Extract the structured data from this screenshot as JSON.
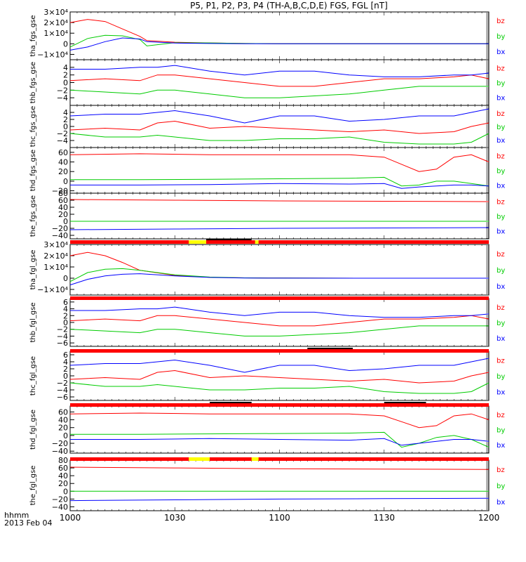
{
  "title": "P5, P1, P2, P3, P4 (TH-A,B,C,D,E) FGS, FGL [nT]",
  "footer": {
    "label": "hhmm",
    "date": "2013 Feb 04"
  },
  "colors": {
    "bx": "#0000ff",
    "by": "#00cc00",
    "bz": "#ff0000",
    "bar_red": "#ff0000",
    "bar_yellow": "#ffff00",
    "bar_black": "#000000"
  },
  "chart_data": [
    {
      "type": "line",
      "ylabel": "tha_fgs_gse",
      "x": [
        "1000",
        "1005",
        "1010",
        "1015",
        "1020",
        "1022",
        "1030",
        "1040",
        "1050",
        "1100",
        "1130",
        "1200"
      ],
      "ylim": [
        -15000,
        30000
      ],
      "yticks": [
        {
          "v": 30000,
          "t": "3×10⁴"
        },
        {
          "v": 20000,
          "t": "2×10⁴"
        },
        {
          "v": 10000,
          "t": "1×10⁴"
        },
        {
          "v": 0,
          "t": "0"
        },
        {
          "v": -10000,
          "t": "−1×10⁴"
        }
      ],
      "series": [
        {
          "name": "bz",
          "values": [
            20000,
            23000,
            21000,
            14000,
            7000,
            3000,
            1500,
            800,
            300,
            100,
            0,
            0
          ]
        },
        {
          "name": "by",
          "values": [
            -3000,
            5000,
            8000,
            7500,
            4000,
            -2000,
            1000,
            800,
            300,
            100,
            0,
            0
          ]
        },
        {
          "name": "bx",
          "values": [
            -6000,
            -3000,
            2000,
            5500,
            4500,
            2000,
            700,
            300,
            100,
            0,
            0,
            0
          ]
        }
      ]
    },
    {
      "type": "line",
      "ylabel": "thb_fgs_gse",
      "x": [
        "1000",
        "1010",
        "1020",
        "1025",
        "1030",
        "1040",
        "1050",
        "1100",
        "1110",
        "1120",
        "1130",
        "1140",
        "1150",
        "1155",
        "1200"
      ],
      "ylim": [
        -6,
        6
      ],
      "yticks": [
        {
          "v": 4,
          "t": "4"
        },
        {
          "v": 2,
          "t": "2"
        },
        {
          "v": 0,
          "t": "0"
        },
        {
          "v": -2,
          "t": "−2"
        },
        {
          "v": -4,
          "t": "−4"
        }
      ],
      "series": [
        {
          "name": "bz",
          "values": [
            0.5,
            1,
            0.5,
            2,
            2,
            1,
            0,
            -1,
            -1,
            0,
            1,
            1,
            1.5,
            2,
            1
          ]
        },
        {
          "name": "by",
          "values": [
            -2,
            -2.5,
            -3,
            -2,
            -2,
            -3,
            -4,
            -4,
            -3.5,
            -3,
            -2,
            -1,
            -1,
            -1,
            -1
          ]
        },
        {
          "name": "bx",
          "values": [
            3.5,
            3.5,
            4,
            4,
            4.5,
            3,
            2,
            3,
            3,
            2,
            1.5,
            1.5,
            2,
            2,
            2.5
          ]
        }
      ]
    },
    {
      "type": "line",
      "ylabel": "thc_fgs_gse",
      "x": [
        "1000",
        "1010",
        "1020",
        "1025",
        "1030",
        "1040",
        "1050",
        "1100",
        "1110",
        "1120",
        "1130",
        "1140",
        "1150",
        "1155",
        "1200"
      ],
      "ylim": [
        -6,
        6
      ],
      "yticks": [
        {
          "v": 4,
          "t": "4"
        },
        {
          "v": 2,
          "t": "2"
        },
        {
          "v": 0,
          "t": "0"
        },
        {
          "v": -2,
          "t": "−2"
        },
        {
          "v": -4,
          "t": "−4"
        }
      ],
      "series": [
        {
          "name": "bz",
          "values": [
            -1,
            -0.5,
            -1,
            1,
            1.5,
            -0.5,
            0,
            -0.5,
            -1,
            -1.5,
            -1,
            -2,
            -1.5,
            0,
            1
          ]
        },
        {
          "name": "by",
          "values": [
            -2,
            -3,
            -3,
            -2.5,
            -3,
            -4,
            -4,
            -3.5,
            -3.5,
            -3,
            -4.5,
            -5,
            -5,
            -4.5,
            -2
          ]
        },
        {
          "name": "bx",
          "values": [
            3,
            3.5,
            3.5,
            4,
            4.5,
            3,
            1,
            3,
            3,
            1.5,
            2,
            3,
            3,
            4,
            5
          ]
        }
      ]
    },
    {
      "type": "line",
      "ylabel": "thd_fgs_gse",
      "x": [
        "1000",
        "1020",
        "1040",
        "1100",
        "1120",
        "1130",
        "1135",
        "1140",
        "1145",
        "1150",
        "1155",
        "1200"
      ],
      "ylim": [
        -25,
        70
      ],
      "yticks": [
        {
          "v": 60,
          "t": "60"
        },
        {
          "v": 40,
          "t": "40"
        },
        {
          "v": 20,
          "t": "20"
        },
        {
          "v": 0,
          "t": "0"
        },
        {
          "v": -20,
          "t": "−20"
        }
      ],
      "series": [
        {
          "name": "bz",
          "values": [
            55,
            57,
            55,
            55,
            55,
            50,
            35,
            20,
            25,
            50,
            55,
            40
          ]
        },
        {
          "name": "by",
          "values": [
            3,
            3,
            4,
            5,
            6,
            8,
            -10,
            -8,
            0,
            0,
            -5,
            -10
          ]
        },
        {
          "name": "bx",
          "values": [
            -8,
            -8,
            -7,
            -5,
            -6,
            -5,
            -15,
            -12,
            -10,
            -8,
            -8,
            -10
          ]
        }
      ]
    },
    {
      "type": "line",
      "ylabel": "the_fgs_gse",
      "x": [
        "1000",
        "1030",
        "1100",
        "1130",
        "1200"
      ],
      "ylim": [
        -50,
        80
      ],
      "yticks": [
        {
          "v": 80,
          "t": "80"
        },
        {
          "v": 60,
          "t": "60"
        },
        {
          "v": 40,
          "t": "40"
        },
        {
          "v": 20,
          "t": "20"
        },
        {
          "v": 0,
          "t": "0"
        },
        {
          "v": -20,
          "t": "−20"
        },
        {
          "v": -40,
          "t": "−40"
        }
      ],
      "series": [
        {
          "name": "bz",
          "values": [
            62,
            60,
            58,
            57,
            56
          ]
        },
        {
          "name": "by",
          "values": [
            0,
            0,
            0,
            0,
            0
          ]
        },
        {
          "name": "bx",
          "values": [
            -24,
            -22,
            -20,
            -19,
            -18
          ]
        }
      ]
    },
    {
      "type": "line",
      "ylabel": "tha_fgl_gse",
      "x": [
        "1000",
        "1005",
        "1010",
        "1015",
        "1020",
        "1030",
        "1040",
        "1050",
        "1100",
        "1130",
        "1200"
      ],
      "ylim": [
        -15000,
        30000
      ],
      "yticks": [
        {
          "v": 30000,
          "t": "3×10⁴"
        },
        {
          "v": 20000,
          "t": "2×10⁴"
        },
        {
          "v": 10000,
          "t": "1×10⁴"
        },
        {
          "v": 0,
          "t": "0"
        },
        {
          "v": -10000,
          "t": "−1×10⁴"
        }
      ],
      "series": [
        {
          "name": "bz",
          "values": [
            20000,
            23000,
            20000,
            14000,
            7000,
            2500,
            800,
            300,
            100,
            0,
            0
          ]
        },
        {
          "name": "by",
          "values": [
            -3000,
            5000,
            8000,
            8500,
            7000,
            3000,
            1000,
            300,
            100,
            0,
            0
          ]
        },
        {
          "name": "bx",
          "values": [
            -6000,
            -1000,
            2000,
            3500,
            4000,
            2000,
            700,
            200,
            50,
            0,
            0
          ]
        }
      ]
    },
    {
      "type": "line",
      "ylabel": "thb_fgl_gse",
      "x": [
        "1000",
        "1010",
        "1020",
        "1025",
        "1030",
        "1040",
        "1050",
        "1100",
        "1110",
        "1120",
        "1130",
        "1140",
        "1150",
        "1155",
        "1200"
      ],
      "ylim": [
        -7,
        7
      ],
      "yticks": [
        {
          "v": 6,
          "t": "6"
        },
        {
          "v": 4,
          "t": "4"
        },
        {
          "v": 2,
          "t": "2"
        },
        {
          "v": 0,
          "t": "0"
        },
        {
          "v": -2,
          "t": "−2"
        },
        {
          "v": -4,
          "t": "−4"
        },
        {
          "v": -6,
          "t": "−6"
        }
      ],
      "series": [
        {
          "name": "bz",
          "values": [
            0.5,
            1,
            0.5,
            2,
            2,
            1,
            0,
            -1,
            -1,
            0,
            1,
            1,
            1.5,
            2,
            1
          ]
        },
        {
          "name": "by",
          "values": [
            -2,
            -2.5,
            -3,
            -2,
            -2,
            -3,
            -4,
            -4,
            -3.5,
            -3,
            -2,
            -1,
            -1,
            -1,
            -1
          ]
        },
        {
          "name": "bx",
          "values": [
            3.5,
            3.5,
            4,
            4,
            4.5,
            3,
            2,
            3,
            3,
            2,
            1.5,
            1.5,
            2,
            2,
            2.5
          ]
        }
      ]
    },
    {
      "type": "line",
      "ylabel": "thc_fgl_gse",
      "x": [
        "1000",
        "1010",
        "1020",
        "1025",
        "1030",
        "1040",
        "1050",
        "1100",
        "1110",
        "1120",
        "1130",
        "1140",
        "1150",
        "1155",
        "1200"
      ],
      "ylim": [
        -7,
        7
      ],
      "yticks": [
        {
          "v": 6,
          "t": "6"
        },
        {
          "v": 4,
          "t": "4"
        },
        {
          "v": 2,
          "t": "2"
        },
        {
          "v": 0,
          "t": "0"
        },
        {
          "v": -2,
          "t": "−2"
        },
        {
          "v": -4,
          "t": "−4"
        },
        {
          "v": -6,
          "t": "−6"
        }
      ],
      "series": [
        {
          "name": "bz",
          "values": [
            -1,
            -0.5,
            -1,
            1,
            1.5,
            -0.5,
            0,
            -0.5,
            -1,
            -1.5,
            -1,
            -2,
            -1.5,
            0,
            1
          ]
        },
        {
          "name": "by",
          "values": [
            -2,
            -3,
            -3,
            -2.5,
            -3,
            -4,
            -4,
            -3.5,
            -3.5,
            -3,
            -4.5,
            -5,
            -5,
            -4.5,
            -2
          ]
        },
        {
          "name": "bx",
          "values": [
            3,
            3.5,
            3.5,
            4,
            4.5,
            3,
            1,
            3,
            3,
            1.5,
            2,
            3,
            3,
            4,
            5
          ]
        }
      ]
    },
    {
      "type": "line",
      "ylabel": "thd_fgl_gse",
      "x": [
        "1000",
        "1020",
        "1040",
        "1100",
        "1120",
        "1130",
        "1135",
        "1140",
        "1145",
        "1150",
        "1155",
        "1200"
      ],
      "ylim": [
        -45,
        75
      ],
      "yticks": [
        {
          "v": 60,
          "t": "60"
        },
        {
          "v": 40,
          "t": "40"
        },
        {
          "v": 20,
          "t": "20"
        },
        {
          "v": 0,
          "t": "0"
        },
        {
          "v": -20,
          "t": "−20"
        },
        {
          "v": -40,
          "t": "−40"
        }
      ],
      "series": [
        {
          "name": "bz",
          "values": [
            55,
            57,
            55,
            55,
            55,
            50,
            35,
            20,
            25,
            50,
            55,
            40
          ]
        },
        {
          "name": "by",
          "values": [
            3,
            3,
            4,
            5,
            6,
            8,
            -30,
            -20,
            -5,
            0,
            -10,
            -30
          ]
        },
        {
          "name": "bx",
          "values": [
            -10,
            -10,
            -8,
            -10,
            -12,
            -8,
            -25,
            -20,
            -15,
            -10,
            -10,
            -15
          ]
        }
      ]
    },
    {
      "type": "line",
      "ylabel": "the_fgl_gse",
      "x": [
        "1000",
        "1030",
        "1100",
        "1130",
        "1200"
      ],
      "ylim": [
        -50,
        80
      ],
      "yticks": [
        {
          "v": 80,
          "t": "80"
        },
        {
          "v": 60,
          "t": "60"
        },
        {
          "v": 40,
          "t": "40"
        },
        {
          "v": 20,
          "t": "20"
        },
        {
          "v": 0,
          "t": "0"
        },
        {
          "v": -20,
          "t": "−20"
        },
        {
          "v": -40,
          "t": "−40"
        }
      ],
      "series": [
        {
          "name": "bz",
          "values": [
            62,
            60,
            58,
            57,
            56
          ]
        },
        {
          "name": "by",
          "values": [
            0,
            0,
            0,
            0,
            0
          ]
        },
        {
          "name": "bx",
          "values": [
            -24,
            -22,
            -20,
            -19,
            -18
          ]
        }
      ]
    }
  ],
  "x_axis": {
    "range": [
      "1000",
      "1200"
    ],
    "ticks": [
      "1000",
      "1030",
      "1100",
      "1130",
      "1200"
    ]
  },
  "status_bars": [
    {
      "segments": [
        {
          "from": "1000",
          "to": "1200",
          "color": "red"
        },
        {
          "from": "1034",
          "to": "1039",
          "color": "yellow"
        },
        {
          "from": "1053",
          "to": "1054",
          "color": "yellow"
        }
      ],
      "marks": [
        {
          "from": "1039",
          "to": "1052",
          "color": "black"
        }
      ]
    },
    {
      "segments": [
        {
          "from": "1000",
          "to": "1200",
          "color": "red"
        }
      ],
      "marks": []
    },
    {
      "segments": [
        {
          "from": "1000",
          "to": "1200",
          "color": "red"
        }
      ],
      "marks": [
        {
          "from": "1108",
          "to": "1121",
          "color": "black"
        }
      ]
    },
    {
      "segments": [
        {
          "from": "1000",
          "to": "1200",
          "color": "red"
        }
      ],
      "marks": [
        {
          "from": "1040",
          "to": "1052",
          "color": "black"
        },
        {
          "from": "1130",
          "to": "1142",
          "color": "black"
        }
      ]
    },
    {
      "segments": [
        {
          "from": "1000",
          "to": "1200",
          "color": "red"
        },
        {
          "from": "1034",
          "to": "1040",
          "color": "yellow"
        },
        {
          "from": "1052",
          "to": "1054",
          "color": "yellow"
        }
      ],
      "marks": []
    }
  ],
  "legend": [
    "bz",
    "by",
    "bx"
  ]
}
